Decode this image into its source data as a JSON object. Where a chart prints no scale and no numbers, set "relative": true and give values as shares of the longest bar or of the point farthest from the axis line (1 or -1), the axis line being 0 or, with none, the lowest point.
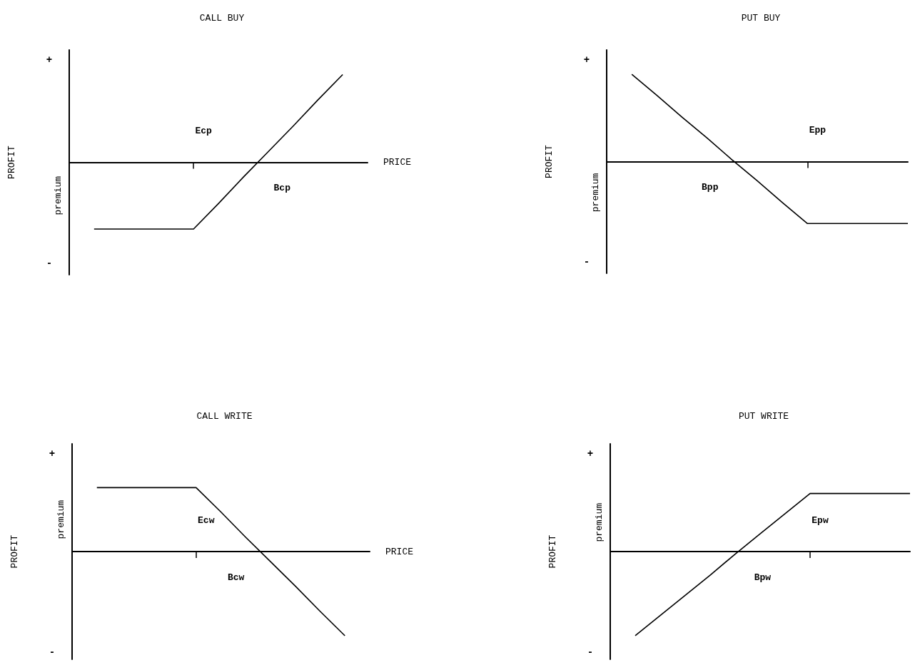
{
  "chart_data": [
    {
      "type": "line",
      "title": "CALL BUY",
      "xlabel": "PRICE",
      "ylabel": "PROFIT",
      "relative": true,
      "marker": "none",
      "color": "#000000",
      "categories": [
        null,
        null,
        null,
        null,
        null,
        null,
        null,
        null,
        null,
        null,
        null,
        null,
        null
      ],
      "values": [
        null,
        -0.76,
        -0.76,
        -0.76,
        -0.76,
        -0.76,
        -0.47,
        -0.17,
        0.12,
        0.41,
        0.71,
        1,
        null
      ],
      "annotations": [
        "+",
        "-",
        "premium",
        "Ecp",
        "Bcp"
      ]
    },
    {
      "type": "line",
      "title": "PUT BUY",
      "ylabel": "PROFIT",
      "relative": true,
      "marker": "none",
      "color": "#000000",
      "categories": [
        null,
        null,
        null,
        null,
        null,
        null,
        null,
        null,
        null,
        null,
        null,
        null,
        null
      ],
      "values": [
        null,
        1,
        0.76,
        0.51,
        0.27,
        0.02,
        -0.22,
        -0.47,
        -0.71,
        -0.71,
        -0.71,
        -0.71,
        -0.71
      ],
      "annotations": [
        "+",
        "-",
        "premium",
        "Epp",
        "Bpp"
      ]
    },
    {
      "type": "line",
      "title": "CALL WRITE",
      "xlabel": "PRICE",
      "ylabel": "PROFIT",
      "relative": true,
      "marker": "none",
      "color": "#000000",
      "categories": [
        null,
        null,
        null,
        null,
        null,
        null,
        null,
        null,
        null,
        null,
        null,
        null,
        null
      ],
      "values": [
        null,
        0.76,
        0.76,
        0.76,
        0.76,
        0.76,
        0.47,
        0.17,
        -0.12,
        -0.41,
        -0.71,
        -1,
        null
      ],
      "annotations": [
        "+",
        "-",
        "premium",
        "Ecw",
        "Bcw"
      ]
    },
    {
      "type": "line",
      "title": "PUT WRITE",
      "ylabel": "PROFIT",
      "relative": true,
      "marker": "none",
      "color": "#000000",
      "categories": [
        null,
        null,
        null,
        null,
        null,
        null,
        null,
        null,
        null,
        null,
        null,
        null,
        null
      ],
      "values": [
        null,
        -1,
        -0.76,
        -0.52,
        -0.28,
        -0.03,
        0.21,
        0.45,
        0.69,
        0.69,
        0.69,
        0.69,
        0.69
      ],
      "annotations": [
        "+",
        "-",
        "premium",
        "Epw",
        "Bpw"
      ]
    }
  ]
}
